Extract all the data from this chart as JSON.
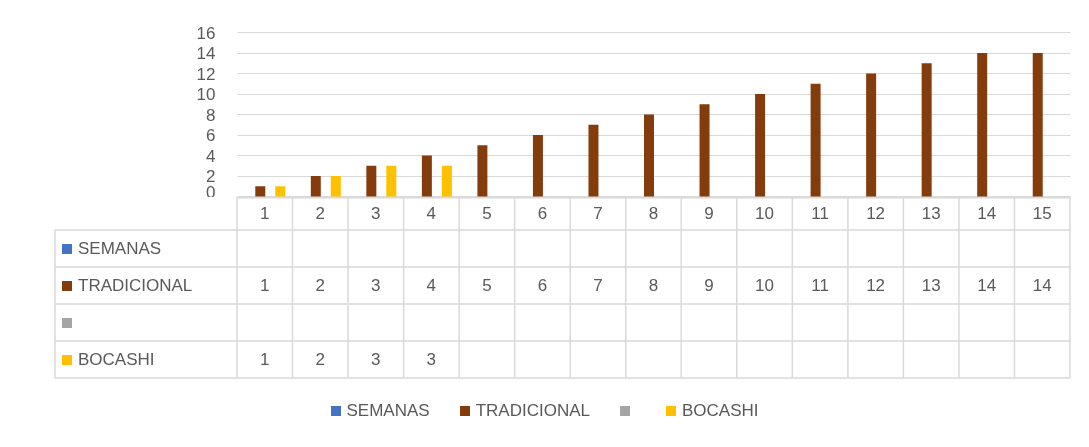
{
  "chart_data": {
    "type": "bar",
    "categories": [
      "1",
      "2",
      "3",
      "4",
      "5",
      "6",
      "7",
      "8",
      "9",
      "10",
      "11",
      "12",
      "13",
      "14",
      "15"
    ],
    "series": [
      {
        "name": "SEMANAS",
        "color": "#4472c4",
        "values": [
          null,
          null,
          null,
          null,
          null,
          null,
          null,
          null,
          null,
          null,
          null,
          null,
          null,
          null,
          null
        ]
      },
      {
        "name": "TRADICIONAL",
        "color": "#843c0c",
        "values": [
          1,
          2,
          3,
          4,
          5,
          6,
          7,
          8,
          9,
          10,
          11,
          12,
          13,
          14,
          14
        ]
      },
      {
        "color": "#a5a5a5",
        "values": [
          null,
          null,
          null,
          null,
          null,
          null,
          null,
          null,
          null,
          null,
          null,
          null,
          null,
          null,
          null
        ]
      },
      {
        "name": "BOCASHI",
        "color": "#ffc000",
        "values": [
          1,
          2,
          3,
          3,
          null,
          null,
          null,
          null,
          null,
          null,
          null,
          null,
          null,
          null,
          null
        ]
      }
    ],
    "ylim": [
      0,
      16
    ],
    "yticks": [
      0,
      2,
      4,
      6,
      8,
      10,
      12,
      14,
      16
    ],
    "grid": "y",
    "legend": "bottom",
    "data_labels": true
  }
}
